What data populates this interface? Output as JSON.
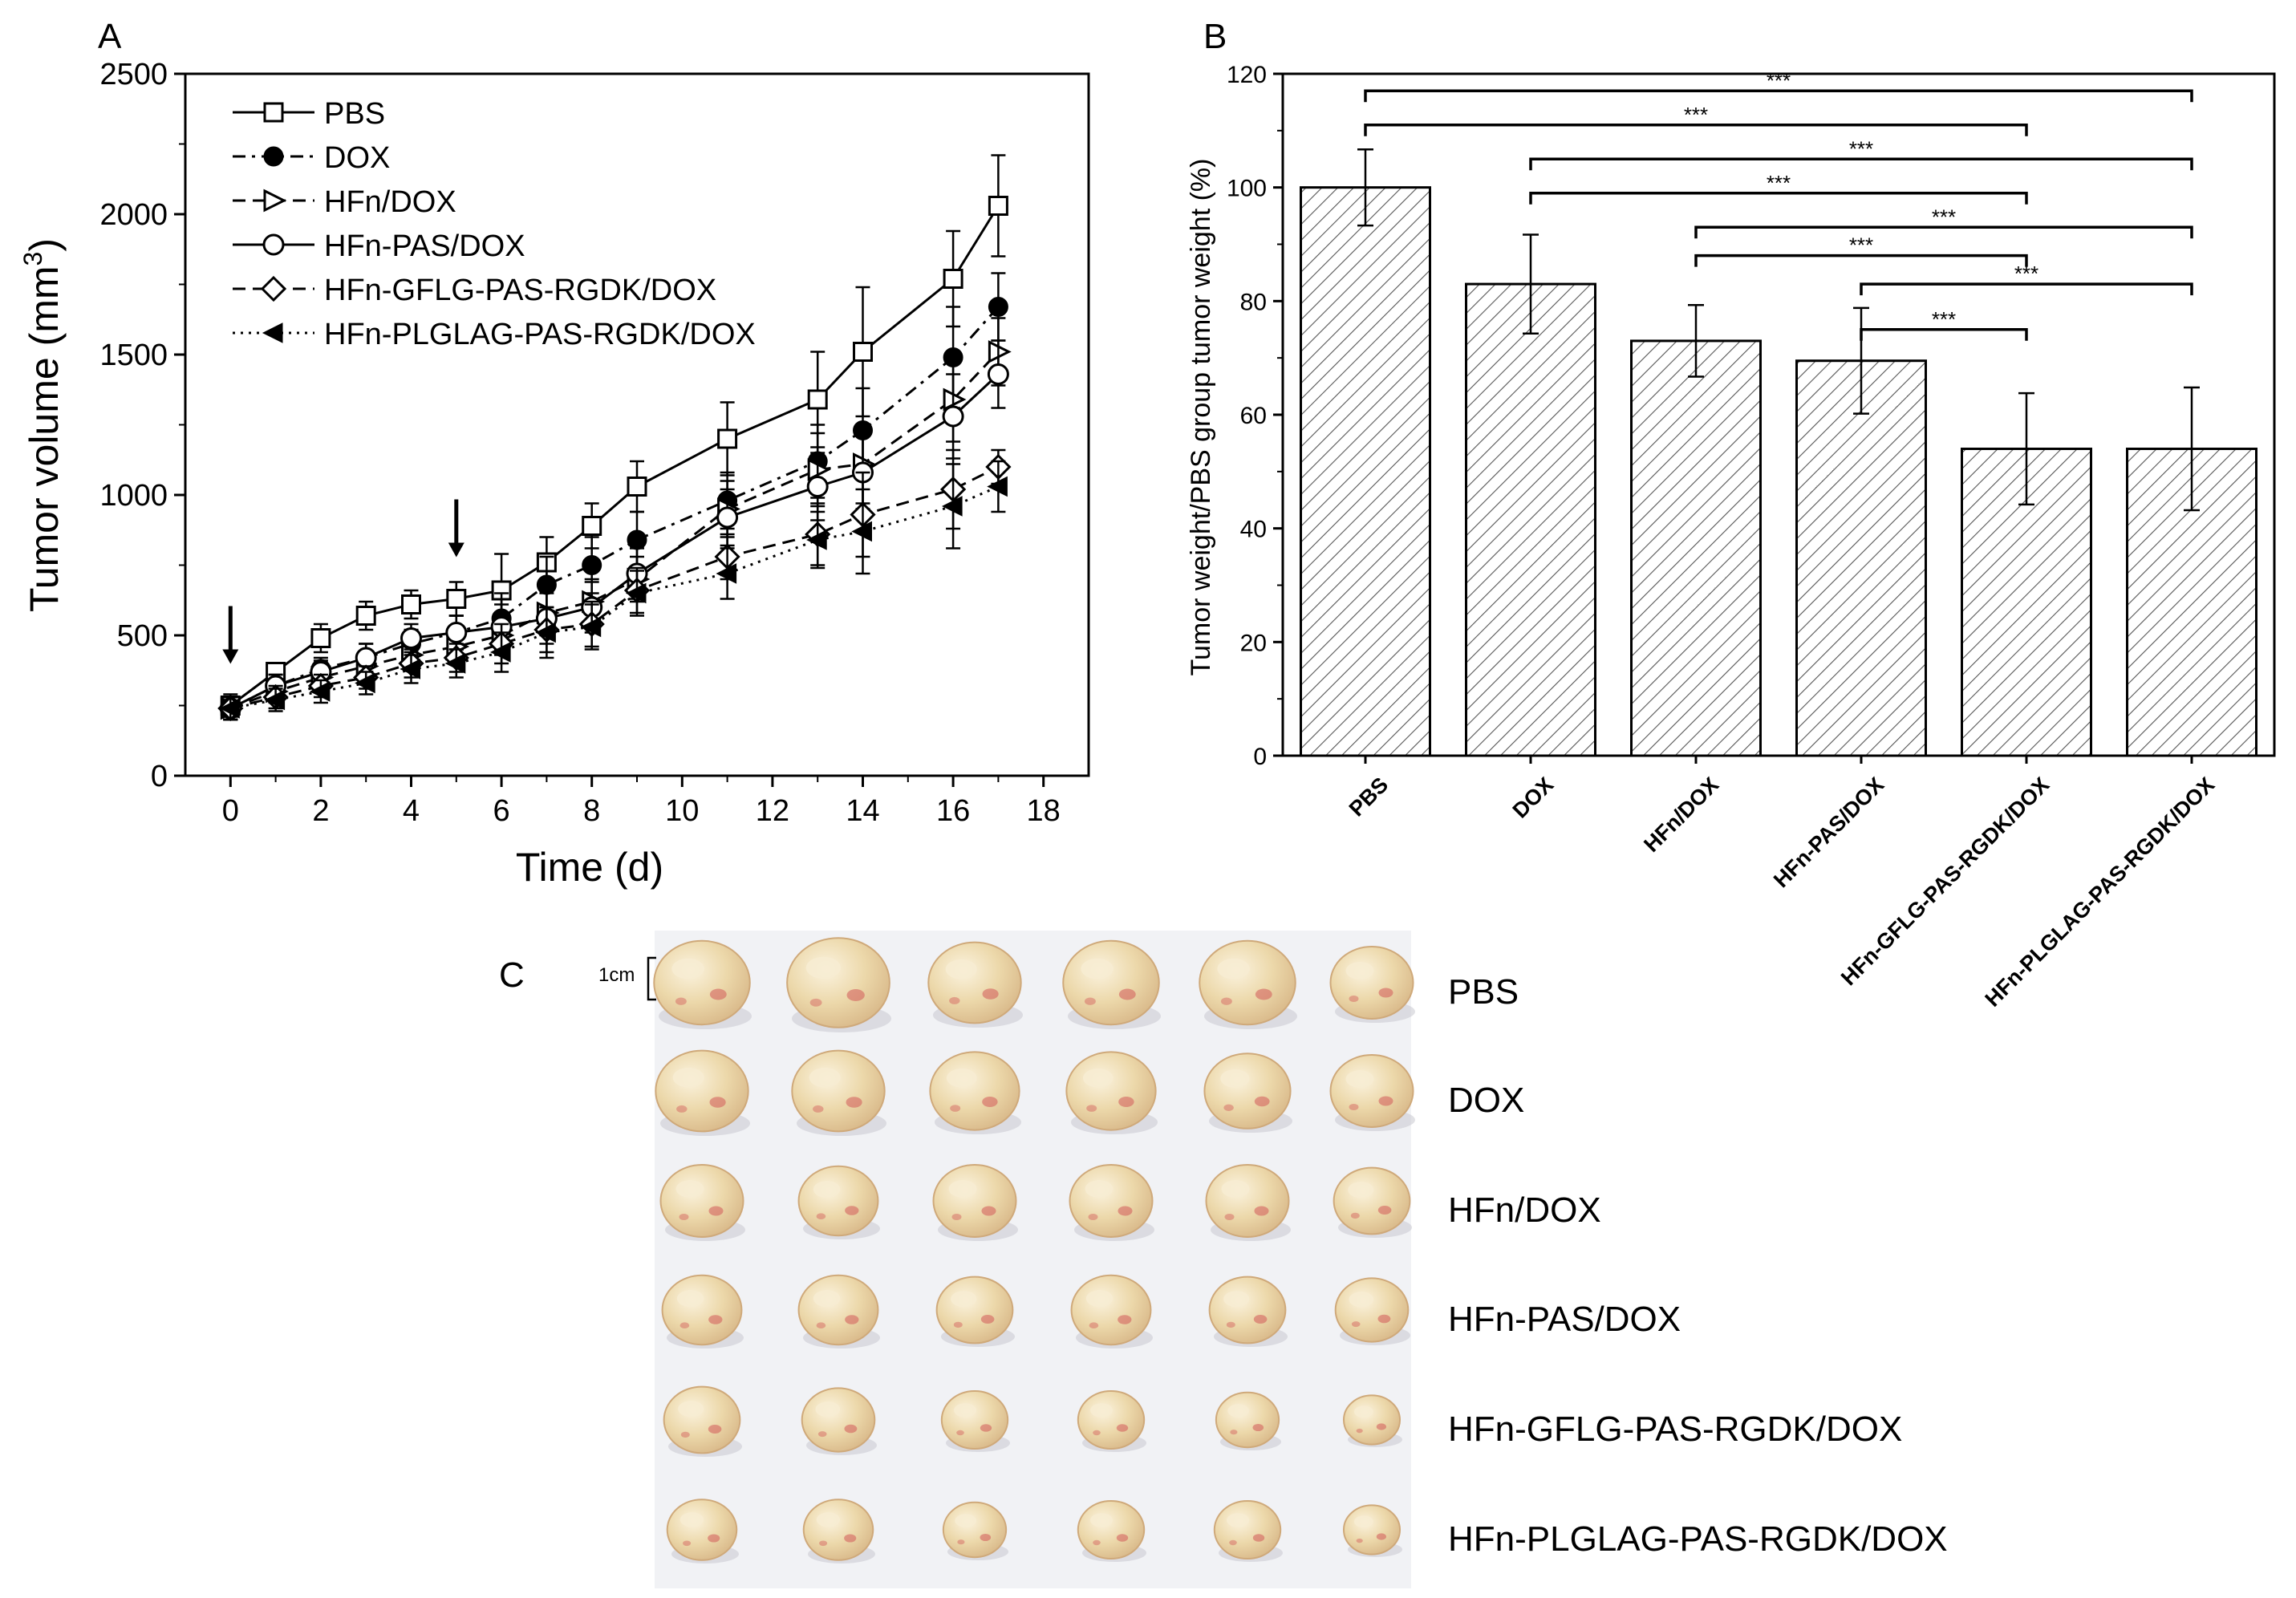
{
  "panel_labels": {
    "a": "A",
    "b": "B",
    "c": "C"
  },
  "chart_data": [
    {
      "type": "line",
      "title": "",
      "xlabel": "Time (d)",
      "ylabel_main": "Tumor volume (mm",
      "ylabel_sup": "3",
      "ylabel_close": ")",
      "xlim": [
        -1,
        19
      ],
      "ylim": [
        0,
        2500
      ],
      "xticks": [
        0,
        2,
        4,
        6,
        8,
        10,
        12,
        14,
        16,
        18
      ],
      "yticks": [
        0,
        500,
        1000,
        1500,
        2000,
        2500
      ],
      "x": [
        0,
        1,
        2,
        3,
        4,
        5,
        6,
        7,
        8,
        9,
        11,
        13,
        14,
        16,
        17
      ],
      "dosing_days": [
        0,
        5
      ],
      "legend_position": "top-left",
      "series": [
        {
          "name": "PBS",
          "marker": "square-open",
          "line": "solid",
          "values": [
            250,
            370,
            490,
            570,
            610,
            630,
            660,
            760,
            890,
            1030,
            1200,
            1340,
            1510,
            1770,
            2030
          ],
          "errors": [
            40,
            30,
            50,
            50,
            50,
            60,
            130,
            90,
            80,
            90,
            130,
            170,
            230,
            170,
            180
          ]
        },
        {
          "name": "DOX",
          "marker": "circle-filled",
          "line": "dash-dot",
          "values": [
            240,
            320,
            380,
            420,
            470,
            510,
            560,
            680,
            750,
            840,
            980,
            1120,
            1230,
            1490,
            1670
          ],
          "errors": [
            40,
            40,
            40,
            50,
            50,
            60,
            90,
            100,
            100,
            100,
            100,
            130,
            150,
            180,
            120
          ]
        },
        {
          "name": "HFn/DOX",
          "marker": "triangle-right-open",
          "line": "dash",
          "values": [
            240,
            300,
            350,
            390,
            430,
            460,
            500,
            580,
            620,
            700,
            950,
            1090,
            1110,
            1340,
            1510
          ],
          "errors": [
            40,
            40,
            40,
            40,
            50,
            50,
            70,
            80,
            80,
            80,
            100,
            130,
            140,
            150,
            120
          ]
        },
        {
          "name": "HFn-PAS/DOX",
          "marker": "circle-open",
          "line": "solid",
          "values": [
            240,
            320,
            370,
            420,
            490,
            510,
            530,
            560,
            600,
            720,
            920,
            1030,
            1080,
            1280,
            1430
          ],
          "errors": [
            40,
            40,
            40,
            50,
            50,
            60,
            80,
            90,
            90,
            90,
            100,
            120,
            130,
            150,
            120
          ]
        },
        {
          "name": "HFn-GFLG-PAS-RGDK/DOX",
          "marker": "diamond-open",
          "line": "dash",
          "values": [
            240,
            280,
            320,
            350,
            400,
            420,
            470,
            520,
            540,
            660,
            780,
            860,
            930,
            1020,
            1100
          ],
          "errors": [
            40,
            40,
            40,
            40,
            50,
            50,
            70,
            80,
            80,
            80,
            80,
            110,
            150,
            140,
            60
          ]
        },
        {
          "name": "HFn-PLGLAG-PAS-RGDK/DOX",
          "marker": "triangle-left-filled",
          "line": "dot",
          "values": [
            240,
            270,
            300,
            330,
            380,
            400,
            440,
            510,
            530,
            650,
            720,
            840,
            870,
            960,
            1030
          ],
          "errors": [
            40,
            40,
            40,
            40,
            50,
            50,
            70,
            90,
            80,
            80,
            90,
            100,
            150,
            150,
            90
          ]
        }
      ]
    },
    {
      "type": "bar",
      "title": "",
      "ylabel": "Tumor weight/PBS group tumor weight (%)",
      "xlabel": "",
      "ylim": [
        0,
        120
      ],
      "yticks": [
        0,
        20,
        40,
        60,
        80,
        100,
        120
      ],
      "categories": [
        "PBS",
        "DOX",
        "HFn/DOX",
        "HFn-PAS/DOX",
        "HFn-GFLG-PAS-RGDK/DOX",
        "HFn-PLGLAG-PAS-RGDK/DOX"
      ],
      "values": [
        100,
        83,
        73,
        69.5,
        54,
        54
      ],
      "errors": [
        6.7,
        8.7,
        6.3,
        9.3,
        9.8,
        10.8
      ],
      "significance": [
        {
          "from": 0,
          "to": 5,
          "level": 117,
          "label": "***"
        },
        {
          "from": 0,
          "to": 4,
          "level": 111,
          "label": "***"
        },
        {
          "from": 1,
          "to": 5,
          "level": 105,
          "label": "***"
        },
        {
          "from": 1,
          "to": 4,
          "level": 99,
          "label": "***"
        },
        {
          "from": 2,
          "to": 5,
          "level": 93,
          "label": "***"
        },
        {
          "from": 2,
          "to": 4,
          "level": 88,
          "label": "***"
        },
        {
          "from": 3,
          "to": 5,
          "level": 83,
          "label": "***"
        },
        {
          "from": 3,
          "to": 4,
          "level": 75,
          "label": "***"
        }
      ]
    }
  ],
  "photo": {
    "scale_label": "1cm",
    "rows": [
      "PBS",
      "DOX",
      "HFn/DOX",
      "HFn-PAS/DOX",
      "HFn-GFLG-PAS-RGDK/DOX",
      "HFn-PLGLAG-PAS-RGDK/DOX"
    ],
    "tumors_per_row": 6,
    "tumor_color": "#ead6a8",
    "tumor_highlight": "#f7ecd2",
    "tumor_red": "#d25a5a",
    "background_color": "#f1f2f5"
  }
}
